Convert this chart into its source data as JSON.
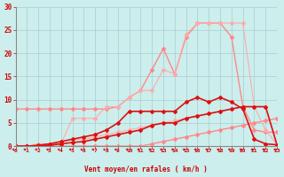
{
  "xlabel": "Vent moyen/en rafales ( km/h )",
  "background_color": "#cceeed",
  "grid_color": "#aacccc",
  "x_values": [
    0,
    1,
    2,
    3,
    4,
    5,
    6,
    7,
    8,
    9,
    10,
    11,
    12,
    13,
    14,
    15,
    16,
    17,
    18,
    19,
    20,
    21,
    22,
    23
  ],
  "ylim": [
    0,
    30
  ],
  "xlim": [
    0,
    23
  ],
  "series": [
    {
      "y": [
        0.0,
        0.0,
        0.0,
        0.0,
        0.0,
        0.0,
        0.0,
        0.0,
        0.0,
        0.0,
        0.0,
        0.0,
        0.5,
        1.0,
        1.5,
        2.0,
        2.5,
        3.0,
        3.5,
        4.0,
        4.5,
        5.0,
        5.5,
        6.0
      ],
      "color": "#ff8888",
      "marker": "D",
      "markersize": 2,
      "linewidth": 1.0
    },
    {
      "y": [
        8.0,
        8.0,
        8.0,
        8.0,
        8.0,
        8.0,
        8.0,
        8.0,
        8.0,
        8.5,
        10.5,
        12.0,
        16.5,
        21.0,
        15.5,
        23.5,
        26.5,
        26.5,
        26.5,
        23.5,
        8.5,
        3.5,
        3.0,
        3.0
      ],
      "color": "#ff8888",
      "marker": "D",
      "markersize": 2,
      "linewidth": 1.0
    },
    {
      "y": [
        0.0,
        0.0,
        0.0,
        0.5,
        1.0,
        1.5,
        1.5,
        2.0,
        2.5,
        3.0,
        3.5,
        4.0,
        4.5,
        5.0,
        5.5,
        6.0,
        6.5,
        7.0,
        7.5,
        8.0,
        8.5,
        8.5,
        8.5,
        0.3
      ],
      "color": "#ffaaaa",
      "marker": "D",
      "markersize": 2,
      "linewidth": 0.8
    },
    {
      "y": [
        0.0,
        0.0,
        0.5,
        0.5,
        0.5,
        6.0,
        6.0,
        6.0,
        8.5,
        8.5,
        10.5,
        12.0,
        12.0,
        16.5,
        15.5,
        24.0,
        26.5,
        26.5,
        26.5,
        26.5,
        26.5,
        8.5,
        3.5,
        0.3
      ],
      "color": "#ffaaaa",
      "marker": "D",
      "markersize": 2,
      "linewidth": 0.8
    },
    {
      "y": [
        0.0,
        0.0,
        0.0,
        0.2,
        0.5,
        0.8,
        1.0,
        1.5,
        2.0,
        2.5,
        3.0,
        3.5,
        4.5,
        5.0,
        5.0,
        6.0,
        6.5,
        7.0,
        7.5,
        8.0,
        8.5,
        8.5,
        8.5,
        0.3
      ],
      "color": "#dd1111",
      "marker": "D",
      "markersize": 2,
      "linewidth": 1.2
    },
    {
      "y": [
        0.0,
        0.0,
        0.2,
        0.5,
        1.0,
        1.5,
        2.0,
        2.5,
        3.5,
        5.0,
        7.5,
        7.5,
        7.5,
        7.5,
        7.5,
        9.5,
        10.5,
        9.5,
        10.5,
        9.5,
        8.0,
        1.5,
        0.5,
        0.3
      ],
      "color": "#dd1111",
      "marker": "D",
      "markersize": 2,
      "linewidth": 1.2
    }
  ],
  "yticks": [
    0,
    5,
    10,
    15,
    20,
    25,
    30
  ],
  "xticks": [
    0,
    1,
    2,
    3,
    4,
    5,
    6,
    7,
    8,
    9,
    10,
    11,
    12,
    13,
    14,
    15,
    16,
    17,
    18,
    19,
    20,
    21,
    22,
    23
  ]
}
